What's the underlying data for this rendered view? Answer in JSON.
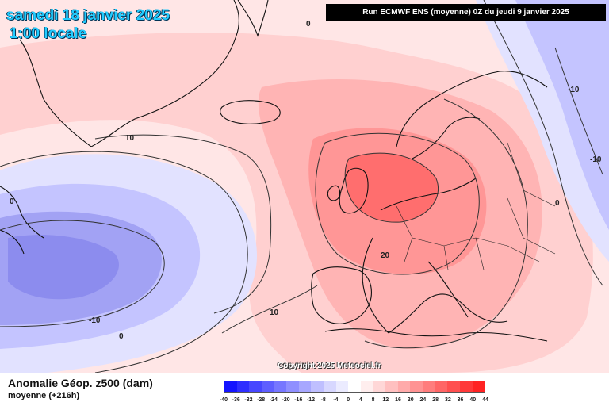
{
  "header": {
    "date_line": "samedi 18 janvier 2025",
    "time_line": "1:00 locale",
    "run_info": "Run ECMWF ENS (moyenne) 0Z du jeudi 9 janvier 2025"
  },
  "footer": {
    "variable_title": "Anomalie Géop. z500 (dam)",
    "variable_subtitle": "moyenne   (+216h)",
    "copyright": "Copyright 2025 Meteociel.fr"
  },
  "colorbar": {
    "labels": [
      "-40",
      "-36",
      "-32",
      "-28",
      "-24",
      "-20",
      "-16",
      "-12",
      "-8",
      "-4",
      "0",
      "4",
      "8",
      "12",
      "16",
      "20",
      "24",
      "28",
      "32",
      "36",
      "40",
      "44"
    ],
    "colors": [
      "#1414ff",
      "#2e2eff",
      "#4747ff",
      "#5f5fff",
      "#7777ff",
      "#8f8fff",
      "#a7a7ff",
      "#bfbfff",
      "#d7d7ff",
      "#ebebff",
      "#ffffff",
      "#ffeeee",
      "#ffd7d7",
      "#ffc0c0",
      "#ffaaaa",
      "#ff9393",
      "#ff7d7d",
      "#ff6666",
      "#ff5050",
      "#ff3939",
      "#ff2323"
    ]
  },
  "contour_labels": [
    {
      "text": "0",
      "name": "contour-label-0-north"
    },
    {
      "text": "10",
      "name": "contour-label-10-greenland"
    },
    {
      "text": "0",
      "name": "contour-label-0-canada"
    },
    {
      "text": "-10",
      "name": "contour-label-minus10-atlantic"
    },
    {
      "text": "0",
      "name": "contour-label-0-south"
    },
    {
      "text": "10",
      "name": "contour-label-10-south"
    },
    {
      "text": "20",
      "name": "contour-label-20-france"
    },
    {
      "text": "0",
      "name": "contour-label-0-russia"
    },
    {
      "text": "-10",
      "name": "contour-label-minus10-russia-north"
    },
    {
      "text": "-10",
      "name": "contour-label-minus10-russia-east"
    }
  ],
  "map_colors": {
    "background": "#ffe6e6",
    "positive_light": "#ffd0d0",
    "positive_mid": "#ffb4b4",
    "positive_strong": "#ff9696",
    "positive_peak": "#ff6e6e",
    "negative_light": "#e2e2ff",
    "negative_mid": "#c4c4ff",
    "negative_strong": "#a2a2f4",
    "negative_peak": "#8c8cee",
    "coast": "#111111",
    "contour": "#333333"
  }
}
